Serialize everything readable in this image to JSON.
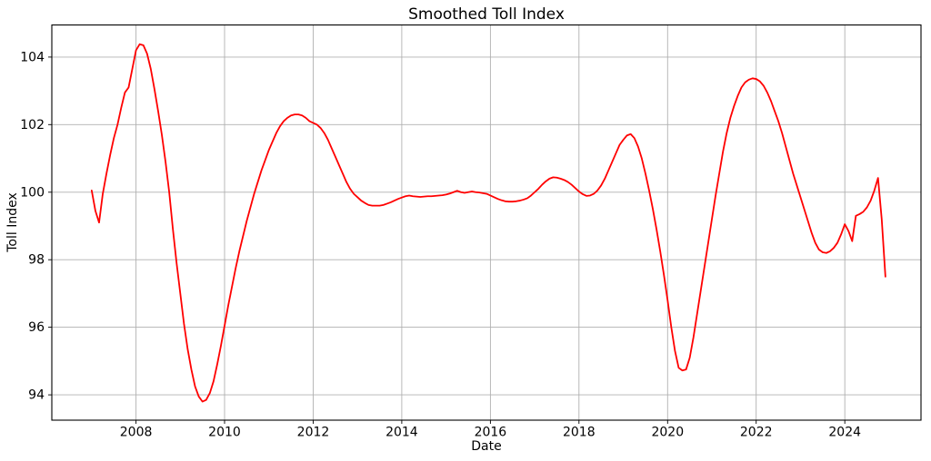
{
  "figure": {
    "title": "Smoothed Toll Index",
    "xlabel": "Date",
    "ylabel": "Toll Index"
  },
  "chart_data": {
    "type": "line",
    "title": "Smoothed Toll Index",
    "xlabel": "Date",
    "ylabel": "Toll Index",
    "xlim": [
      2006.1,
      2025.72
    ],
    "ylim": [
      93.25,
      104.95
    ],
    "x_ticks": [
      2008,
      2010,
      2012,
      2014,
      2016,
      2018,
      2020,
      2022,
      2024
    ],
    "y_ticks": [
      94,
      96,
      98,
      100,
      102,
      104
    ],
    "grid": true,
    "legend": false,
    "line_color": "#ff0000",
    "grid_color": "#b0b0b0",
    "series": [
      {
        "name": "Smoothed Toll Index",
        "x_start": 2007.0,
        "x_step_years": 0.0833333,
        "values": [
          100.05,
          99.45,
          99.1,
          99.95,
          100.55,
          101.1,
          101.6,
          102.0,
          102.5,
          102.95,
          103.1,
          103.65,
          104.2,
          104.38,
          104.35,
          104.1,
          103.65,
          103.05,
          102.4,
          101.7,
          100.9,
          100.0,
          98.9,
          97.9,
          97.0,
          96.1,
          95.35,
          94.75,
          94.25,
          93.95,
          93.8,
          93.85,
          94.05,
          94.4,
          94.9,
          95.45,
          96.05,
          96.65,
          97.2,
          97.75,
          98.25,
          98.7,
          99.15,
          99.55,
          99.95,
          100.3,
          100.65,
          100.95,
          101.25,
          101.5,
          101.75,
          101.95,
          102.1,
          102.2,
          102.27,
          102.3,
          102.3,
          102.27,
          102.2,
          102.1,
          102.05,
          102.0,
          101.9,
          101.75,
          101.55,
          101.3,
          101.05,
          100.8,
          100.55,
          100.3,
          100.1,
          99.95,
          99.85,
          99.75,
          99.68,
          99.62,
          99.6,
          99.6,
          99.6,
          99.62,
          99.66,
          99.7,
          99.75,
          99.8,
          99.84,
          99.88,
          99.9,
          99.88,
          99.87,
          99.86,
          99.87,
          99.88,
          99.88,
          99.89,
          99.9,
          99.91,
          99.93,
          99.96,
          100.0,
          100.04,
          100.0,
          99.98,
          100.0,
          100.02,
          100.0,
          99.99,
          99.97,
          99.95,
          99.9,
          99.85,
          99.8,
          99.76,
          99.73,
          99.72,
          99.72,
          99.73,
          99.75,
          99.78,
          99.82,
          99.9,
          100.0,
          100.1,
          100.22,
          100.32,
          100.4,
          100.44,
          100.43,
          100.4,
          100.36,
          100.3,
          100.22,
          100.12,
          100.02,
          99.94,
          99.89,
          99.9,
          99.95,
          100.05,
          100.2,
          100.4,
          100.65,
          100.9,
          101.15,
          101.4,
          101.55,
          101.68,
          101.72,
          101.6,
          101.35,
          101.0,
          100.55,
          100.05,
          99.5,
          98.9,
          98.25,
          97.55,
          96.8,
          96.0,
          95.3,
          94.8,
          94.72,
          94.75,
          95.1,
          95.7,
          96.4,
          97.1,
          97.8,
          98.5,
          99.2,
          99.9,
          100.55,
          101.2,
          101.75,
          102.2,
          102.55,
          102.85,
          103.1,
          103.25,
          103.33,
          103.37,
          103.35,
          103.28,
          103.15,
          102.95,
          102.7,
          102.4,
          102.1,
          101.75,
          101.35,
          100.95,
          100.55,
          100.2,
          99.85,
          99.5,
          99.15,
          98.8,
          98.5,
          98.3,
          98.22,
          98.2,
          98.25,
          98.35,
          98.5,
          98.75,
          99.05,
          98.85,
          98.55,
          99.3,
          99.35,
          99.42,
          99.55,
          99.75,
          100.05,
          100.42,
          99.2,
          97.5
        ]
      }
    ]
  }
}
